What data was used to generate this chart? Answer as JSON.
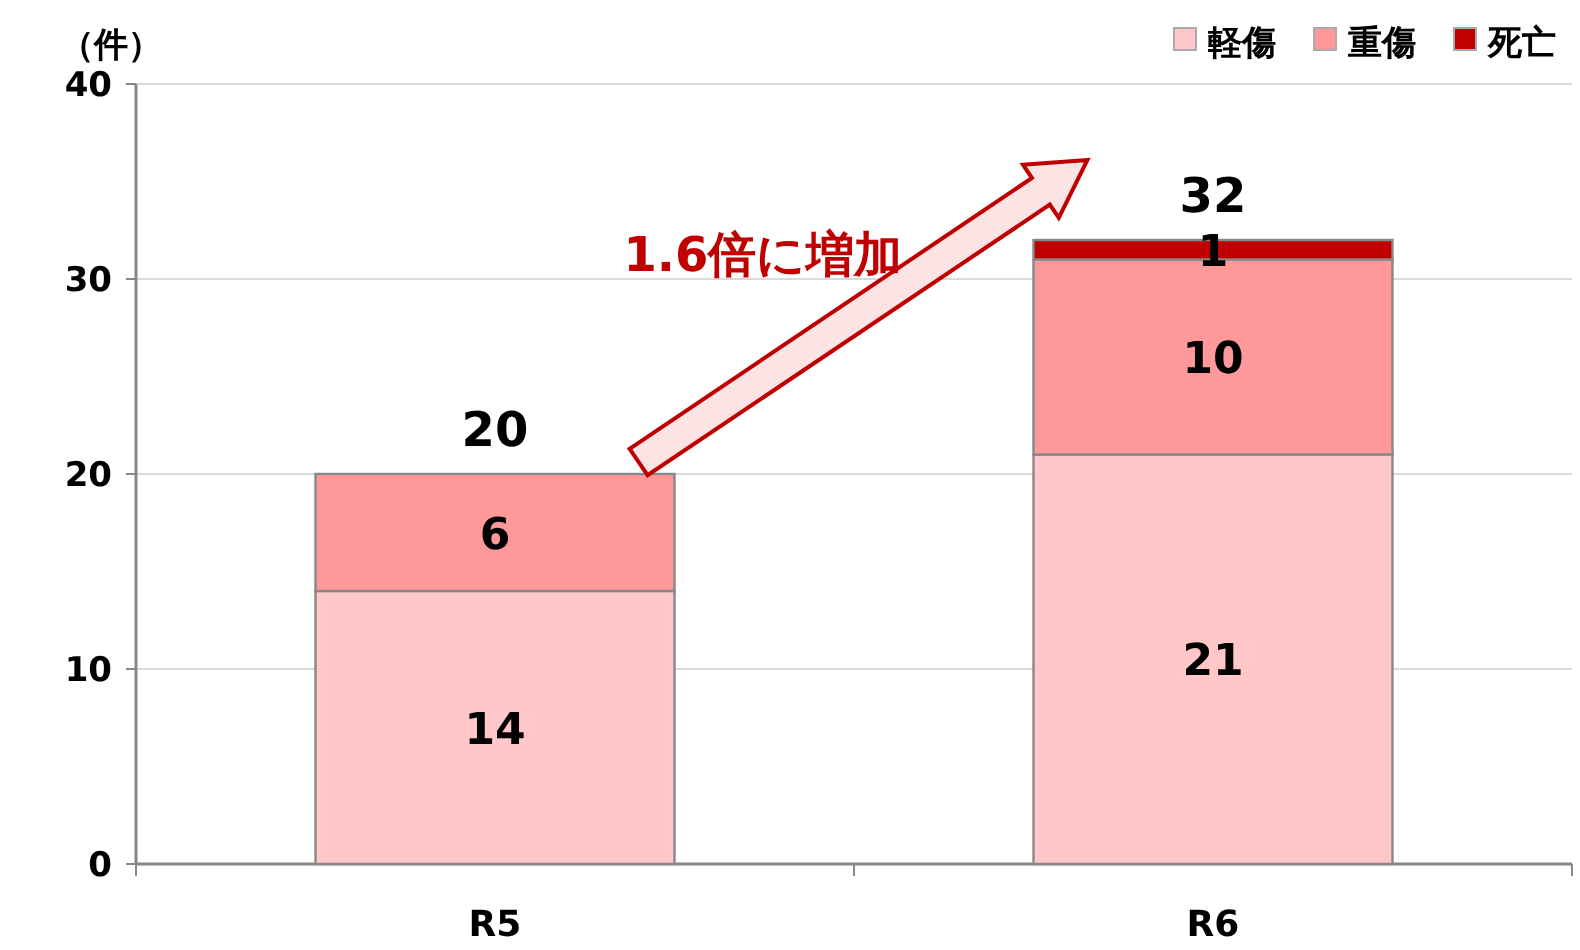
{
  "chart_data": {
    "type": "bar",
    "stacked": true,
    "ylabel": "（件）",
    "categories": [
      "R5",
      "R6"
    ],
    "series": [
      {
        "name": "軽傷",
        "color": "#ffc7c7",
        "values": [
          14,
          21
        ]
      },
      {
        "name": "重傷",
        "color": "#ff9999",
        "values": [
          6,
          10
        ]
      },
      {
        "name": "死亡",
        "color": "#c00000",
        "values": [
          null,
          1
        ]
      }
    ],
    "ylim": [
      0,
      40
    ],
    "yticks": [
      0,
      10,
      20,
      30,
      40
    ],
    "grid": "y",
    "legend": "top right",
    "data_labels": true,
    "totals": [
      "20",
      "32"
    ],
    "annotations": [
      "1.6倍に増加"
    ]
  }
}
